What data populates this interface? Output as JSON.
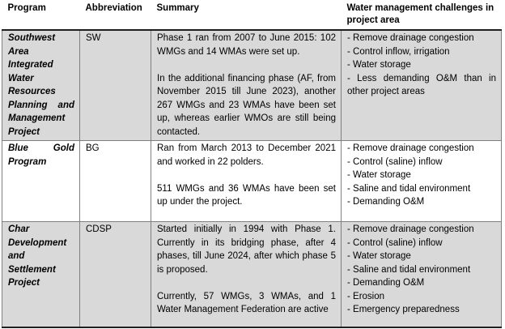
{
  "colors": {
    "page_bg": "#ffffff",
    "row_bg": "#ffffff",
    "shaded_row_bg": "#d9d9d9",
    "grid_border": "#808080",
    "heavy_border": "#1f1f1f",
    "text": "#000000"
  },
  "table": {
    "columns": [
      "Program",
      "Abbreviation",
      "Summary",
      "Water management challenges in project area"
    ],
    "rows": [
      {
        "program": "Southwest Area Integrated Water Resources Planning and Management Project",
        "abbreviation": "SW",
        "summary": [
          "Phase 1 ran from 2007 to June 2015: 102 WMGs and 14 WMAs were set up.",
          "In the additional financing phase (AF, from November 2015 till June 2023), another 267 WMGs and 23 WMAs have been set up, whereas earlier WMOs are still being contacted."
        ],
        "challenges": [
          "- Remove drainage congestion",
          "- Control inflow, irrigation",
          "- Water storage",
          "- Less demanding O&M than in other project areas"
        ],
        "shaded": true
      },
      {
        "program": "Blue Gold Program",
        "abbreviation": "BG",
        "summary": [
          "Ran from March 2013 to December 2021 and worked in 22 polders.",
          "511 WMGs and 36 WMAs have been set up under the project."
        ],
        "challenges": [
          "- Remove drainage congestion",
          "- Control (saline) inflow",
          "- Water storage",
          "- Saline and tidal environment",
          "- Demanding O&M"
        ],
        "shaded": false
      },
      {
        "program": "Char Development and Settlement Project",
        "abbreviation": "CDSP",
        "summary": [
          "Started initially in 1994 with Phase 1. Currently in its bridging phase, after 4 phases, till June 2024, after which phase 5 is proposed.",
          "Currently, 57 WMGs, 3 WMAs, and 1 Water Management Federation are active"
        ],
        "challenges": [
          "- Remove drainage congestion",
          "- Control (saline) inflow",
          "- Water storage",
          "- Saline and tidal environment",
          "- Demanding O&M",
          "- Erosion",
          "- Emergency preparedness"
        ],
        "shaded": true
      }
    ]
  }
}
